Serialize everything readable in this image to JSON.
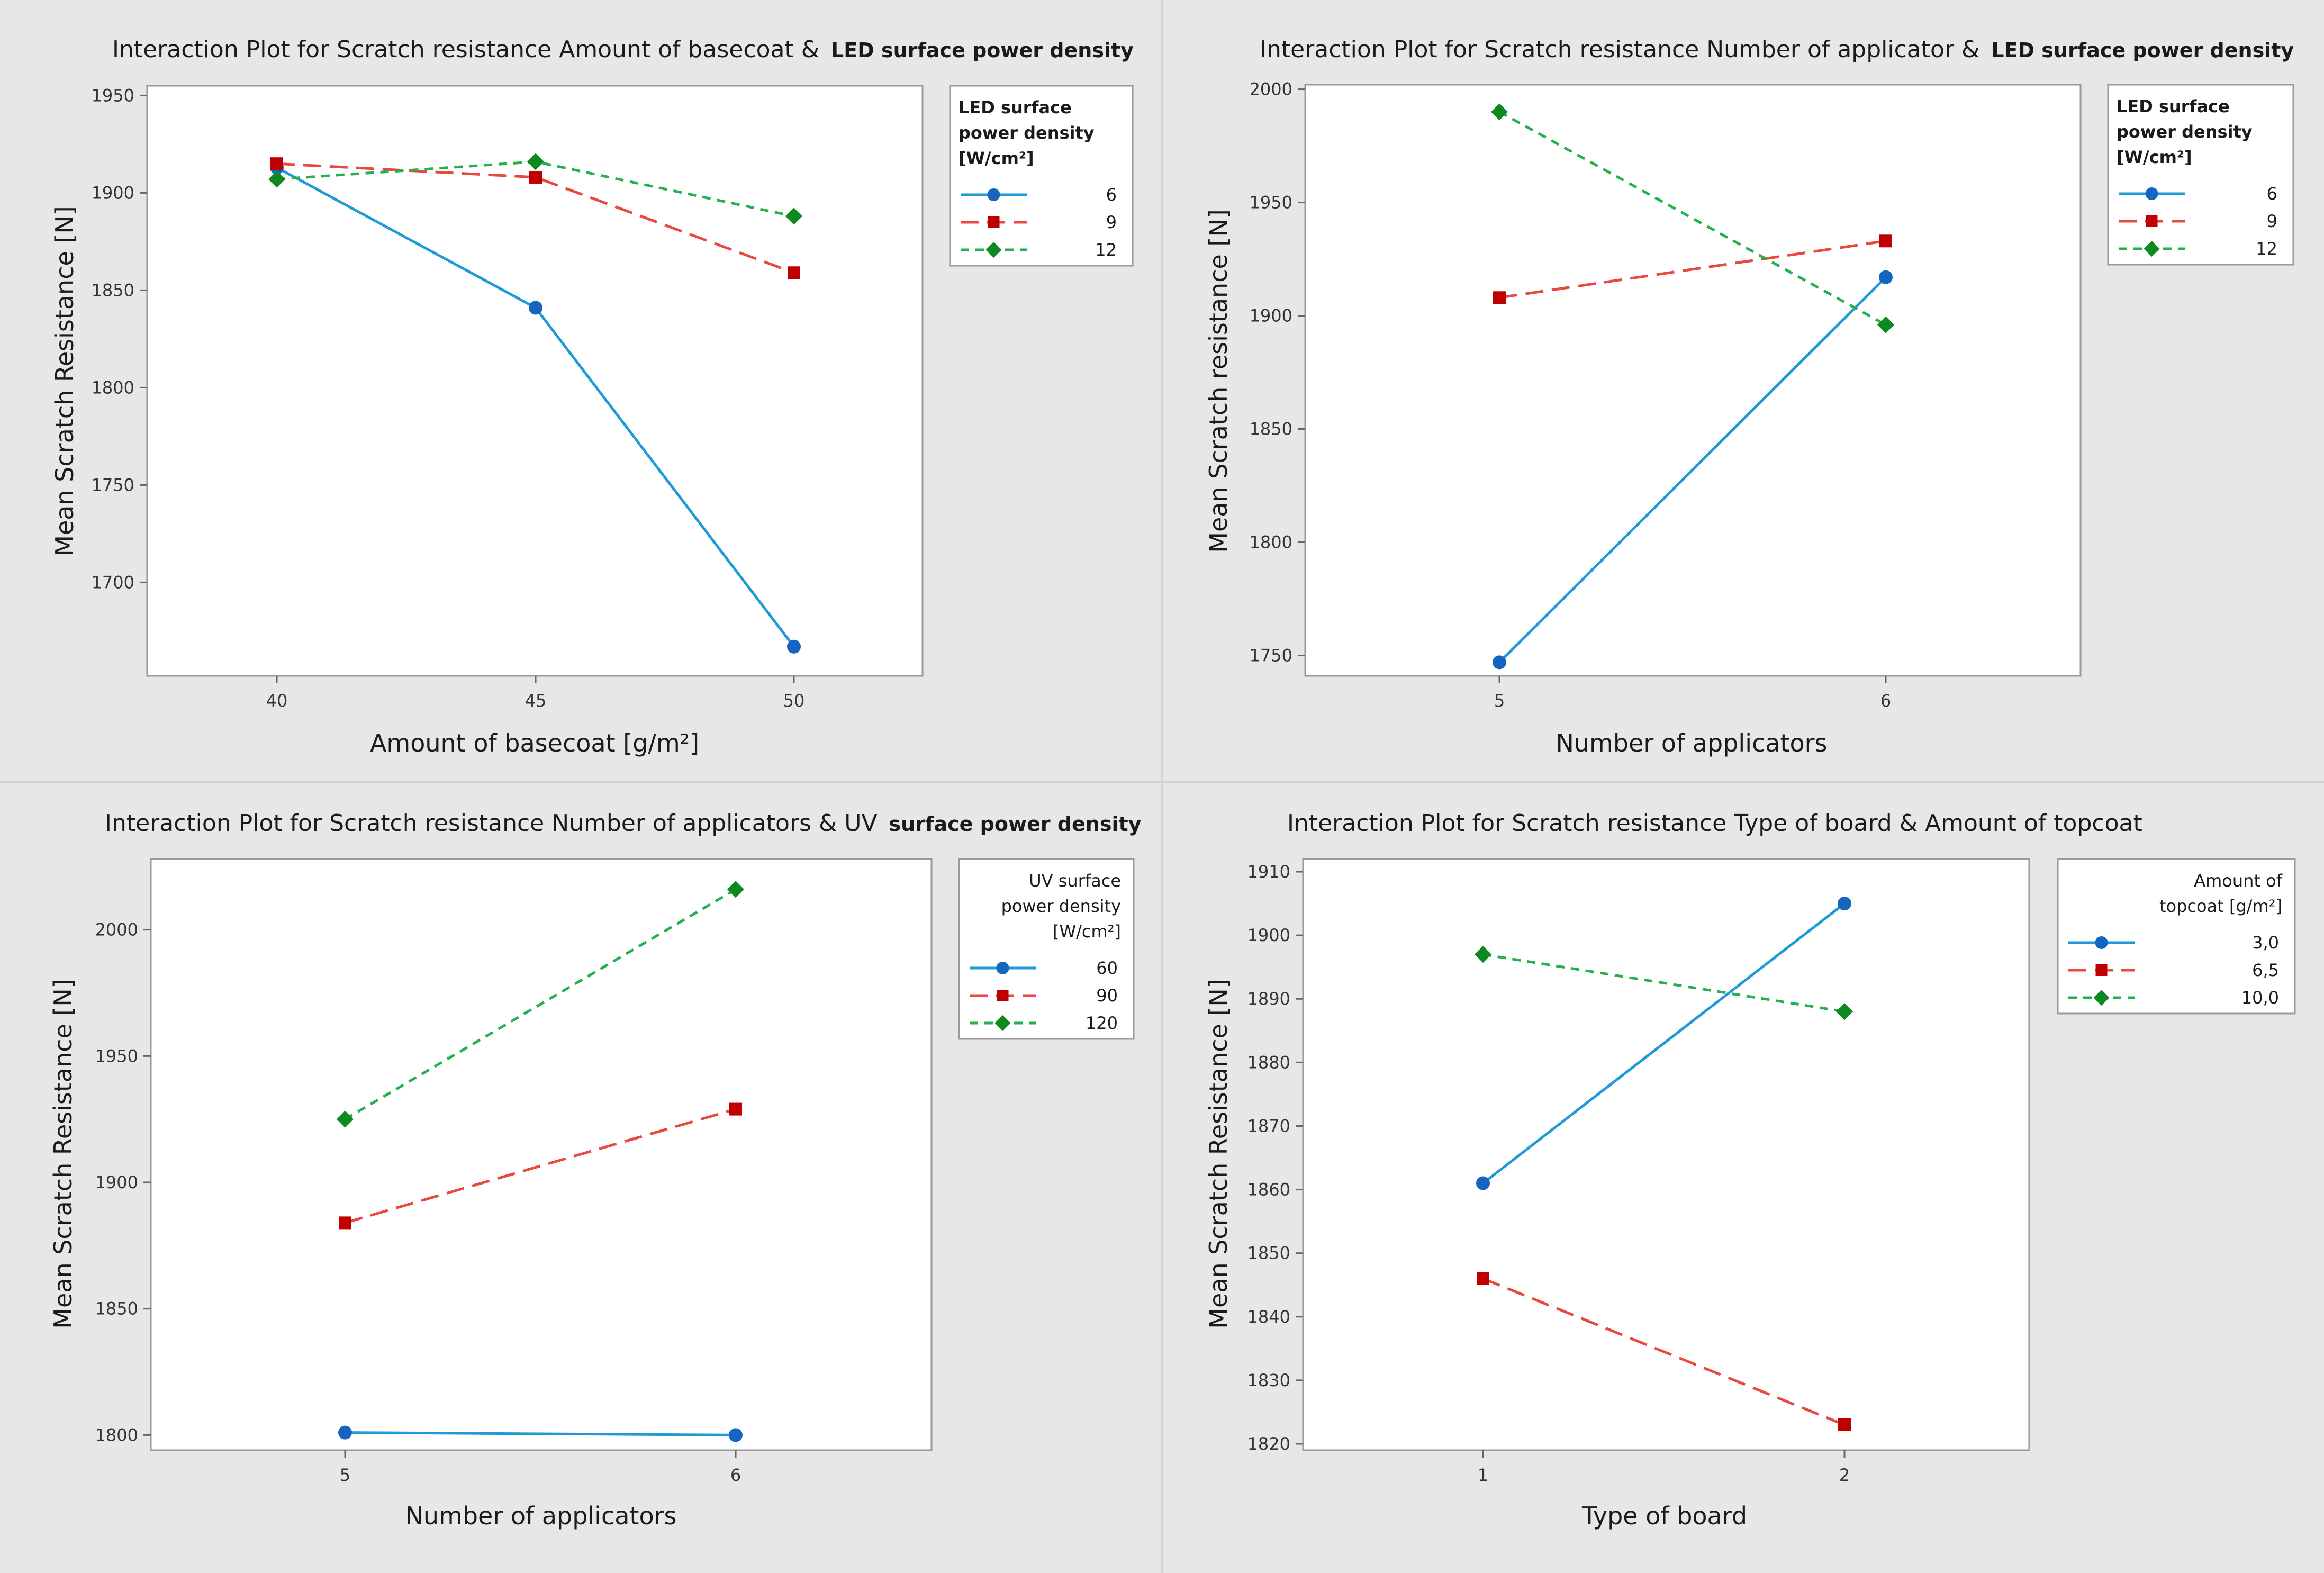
{
  "chart_data": [
    {
      "type": "line",
      "title": "Interaction Plot for Scratch resistance Amount of basecoat &",
      "title_suffix": "LED surface power density",
      "xlabel": "Amount of basecoat [g/m²]",
      "ylabel": "Mean Scratch Resistance [N]",
      "categories": [
        "40",
        "45",
        "50"
      ],
      "yticks": [
        1700,
        1750,
        1800,
        1850,
        1900,
        1950
      ],
      "ylim": [
        1652,
        1955
      ],
      "legend": {
        "title_lines": [
          "LED surface",
          "power density",
          "[W/cm²]"
        ],
        "position": "top-right",
        "align": "left"
      },
      "series": [
        {
          "name": "6",
          "color": "#1f9ad6",
          "marker_color": "#1565c0",
          "dash": "solid",
          "marker": "circle",
          "values": [
            1913,
            1841,
            1667
          ]
        },
        {
          "name": "9",
          "color": "#e8483f",
          "marker_color": "#c00000",
          "dash": "dashed",
          "marker": "square",
          "values": [
            1915,
            1908,
            1859
          ]
        },
        {
          "name": "12",
          "color": "#23b14d",
          "marker_color": "#0d8a1f",
          "dash": "dotted",
          "marker": "diamond",
          "values": [
            1907,
            1916,
            1888
          ]
        }
      ]
    },
    {
      "type": "line",
      "title": "Interaction Plot for Scratch resistance Number of applicator &",
      "title_suffix": "LED surface power density",
      "xlabel": "Number of applicators",
      "ylabel": "Mean Scratch resistance [N]",
      "categories": [
        "5",
        "6"
      ],
      "yticks": [
        1750,
        1800,
        1850,
        1900,
        1950,
        2000
      ],
      "ylim": [
        1741,
        2002
      ],
      "legend": {
        "title_lines": [
          "LED surface",
          "power density",
          "[W/cm²]"
        ],
        "position": "top-right",
        "align": "left"
      },
      "series": [
        {
          "name": "6",
          "color": "#1f9ad6",
          "marker_color": "#1565c0",
          "dash": "solid",
          "marker": "circle",
          "values": [
            1747,
            1917
          ]
        },
        {
          "name": "9",
          "color": "#e8483f",
          "marker_color": "#c00000",
          "dash": "dashed",
          "marker": "square",
          "values": [
            1908,
            1933
          ]
        },
        {
          "name": "12",
          "color": "#23b14d",
          "marker_color": "#0d8a1f",
          "dash": "dotted",
          "marker": "diamond",
          "values": [
            1990,
            1896
          ]
        }
      ]
    },
    {
      "type": "line",
      "title": "Interaction Plot for Scratch resistance Number of applicators & UV",
      "title_suffix": "surface power density",
      "xlabel": "Number of applicators",
      "ylabel": "Mean Scratch Resistance [N]",
      "categories": [
        "5",
        "6"
      ],
      "yticks": [
        1800,
        1850,
        1900,
        1950,
        2000
      ],
      "ylim": [
        1794,
        2028
      ],
      "legend": {
        "title_lines": [
          "UV surface",
          "power density",
          "[W/cm²]"
        ],
        "position": "top-right",
        "align": "right"
      },
      "series": [
        {
          "name": "60",
          "color": "#1f9ad6",
          "marker_color": "#1565c0",
          "dash": "solid",
          "marker": "circle",
          "values": [
            1801,
            1800
          ]
        },
        {
          "name": "90",
          "color": "#e8483f",
          "marker_color": "#c00000",
          "dash": "dashed",
          "marker": "square",
          "values": [
            1884,
            1929
          ]
        },
        {
          "name": "120",
          "color": "#23b14d",
          "marker_color": "#0d8a1f",
          "dash": "dotted",
          "marker": "diamond",
          "values": [
            1925,
            2016
          ]
        }
      ]
    },
    {
      "type": "line",
      "title": "Interaction Plot for Scratch resistance Type of board & Amount of topcoat",
      "title_suffix": "",
      "xlabel": "Type of board",
      "ylabel": "Mean Scratch Resistance [N]",
      "categories": [
        "1",
        "2"
      ],
      "yticks": [
        1820,
        1830,
        1840,
        1850,
        1860,
        1870,
        1880,
        1890,
        1900,
        1910
      ],
      "ylim": [
        1819,
        1912
      ],
      "legend": {
        "title_lines": [
          "Amount of",
          "topcoat [g/m²]"
        ],
        "position": "top-right",
        "align": "right"
      },
      "series": [
        {
          "name": "3,0",
          "color": "#1f9ad6",
          "marker_color": "#1565c0",
          "dash": "solid",
          "marker": "circle",
          "values": [
            1861,
            1905
          ]
        },
        {
          "name": "6,5",
          "color": "#e8483f",
          "marker_color": "#c00000",
          "dash": "dashed",
          "marker": "square",
          "values": [
            1846,
            1823
          ]
        },
        {
          "name": "10,0",
          "color": "#23b14d",
          "marker_color": "#0d8a1f",
          "dash": "dotted",
          "marker": "diamond",
          "values": [
            1897,
            1888
          ]
        }
      ]
    }
  ]
}
